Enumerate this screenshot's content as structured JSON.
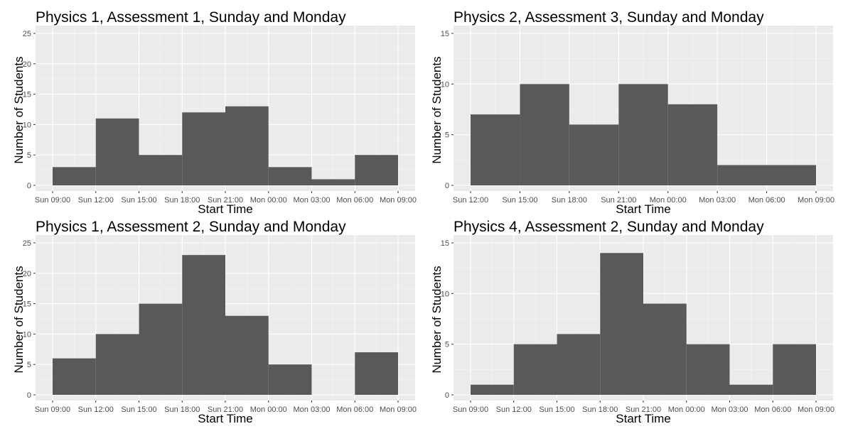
{
  "colors": {
    "panel_background": "#ebebeb",
    "major_grid": "#ffffff",
    "minor_grid": "#f5f5f5",
    "bar_fill": "#595959",
    "tick_text": "#4d4d4d",
    "text": "#000000"
  },
  "chart_data": [
    {
      "type": "bar",
      "title": "Physics 1, Assessment 1, Sunday and Monday",
      "xlabel": "Start Time",
      "ylabel": "Number of Students",
      "x_ticks": [
        "Sun 09:00",
        "Sun 12:00",
        "Sun 15:00",
        "Sun 18:00",
        "Sun 21:00",
        "Mon 00:00",
        "Mon 03:00",
        "Mon 06:00",
        "Mon 09:00"
      ],
      "bins": [
        {
          "start": "Sun 09:00",
          "end": "Sun 12:00",
          "value": 3
        },
        {
          "start": "Sun 12:00",
          "end": "Sun 15:00",
          "value": 11
        },
        {
          "start": "Sun 15:00",
          "end": "Sun 18:00",
          "value": 5
        },
        {
          "start": "Sun 18:00",
          "end": "Sun 21:00",
          "value": 12
        },
        {
          "start": "Sun 21:00",
          "end": "Mon 00:00",
          "value": 13
        },
        {
          "start": "Mon 00:00",
          "end": "Mon 03:00",
          "value": 3
        },
        {
          "start": "Mon 03:00",
          "end": "Mon 06:00",
          "value": 1
        },
        {
          "start": "Mon 06:00",
          "end": "Mon 09:00",
          "value": 5
        }
      ],
      "y_ticks": [
        0,
        5,
        10,
        15,
        20,
        25
      ],
      "ylim": [
        0,
        25
      ],
      "grid": true
    },
    {
      "type": "bar",
      "title": "Physics 2, Assessment 3, Sunday and Monday",
      "xlabel": "Start Time",
      "ylabel": "Number of Students",
      "x_ticks": [
        "Sun 12:00",
        "Sun 15:00",
        "Sun 18:00",
        "Sun 21:00",
        "Mon 00:00",
        "Mon 03:00",
        "Mon 06:00",
        "Mon 09:00"
      ],
      "bins": [
        {
          "start": "Sun 12:00",
          "end": "Sun 15:00",
          "value": 7
        },
        {
          "start": "Sun 15:00",
          "end": "Sun 18:00",
          "value": 10
        },
        {
          "start": "Sun 18:00",
          "end": "Sun 21:00",
          "value": 6
        },
        {
          "start": "Sun 21:00",
          "end": "Mon 00:00",
          "value": 10
        },
        {
          "start": "Mon 00:00",
          "end": "Mon 03:00",
          "value": 8
        },
        {
          "start": "Mon 03:00",
          "end": "Mon 09:00",
          "value": 2
        }
      ],
      "y_ticks": [
        0,
        5,
        10,
        15
      ],
      "ylim": [
        0,
        15
      ],
      "grid": true
    },
    {
      "type": "bar",
      "title": "Physics 1, Assessment 2, Sunday and Monday",
      "xlabel": "Start Time",
      "ylabel": "Number of Students",
      "x_ticks": [
        "Sun 09:00",
        "Sun 12:00",
        "Sun 15:00",
        "Sun 18:00",
        "Sun 21:00",
        "Mon 00:00",
        "Mon 03:00",
        "Mon 06:00",
        "Mon 09:00"
      ],
      "bins": [
        {
          "start": "Sun 09:00",
          "end": "Sun 12:00",
          "value": 6
        },
        {
          "start": "Sun 12:00",
          "end": "Sun 15:00",
          "value": 10
        },
        {
          "start": "Sun 15:00",
          "end": "Sun 18:00",
          "value": 15
        },
        {
          "start": "Sun 18:00",
          "end": "Sun 21:00",
          "value": 23
        },
        {
          "start": "Sun 21:00",
          "end": "Mon 00:00",
          "value": 13
        },
        {
          "start": "Mon 00:00",
          "end": "Mon 03:00",
          "value": 5
        },
        {
          "start": "Mon 03:00",
          "end": "Mon 06:00",
          "value": 0
        },
        {
          "start": "Mon 06:00",
          "end": "Mon 09:00",
          "value": 7
        }
      ],
      "y_ticks": [
        0,
        5,
        10,
        15,
        20,
        25
      ],
      "ylim": [
        0,
        25
      ],
      "grid": true
    },
    {
      "type": "bar",
      "title": "Physics 4, Assessment 2, Sunday and Monday",
      "xlabel": "Start Time",
      "ylabel": "Number of Students",
      "x_ticks": [
        "Sun 09:00",
        "Sun 12:00",
        "Sun 15:00",
        "Sun 18:00",
        "Sun 21:00",
        "Mon 00:00",
        "Mon 03:00",
        "Mon 06:00",
        "Mon 09:00"
      ],
      "bins": [
        {
          "start": "Sun 09:00",
          "end": "Sun 12:00",
          "value": 1
        },
        {
          "start": "Sun 12:00",
          "end": "Sun 15:00",
          "value": 5
        },
        {
          "start": "Sun 15:00",
          "end": "Sun 18:00",
          "value": 6
        },
        {
          "start": "Sun 18:00",
          "end": "Sun 21:00",
          "value": 14
        },
        {
          "start": "Sun 21:00",
          "end": "Mon 00:00",
          "value": 9
        },
        {
          "start": "Mon 00:00",
          "end": "Mon 03:00",
          "value": 5
        },
        {
          "start": "Mon 03:00",
          "end": "Mon 06:00",
          "value": 1
        },
        {
          "start": "Mon 06:00",
          "end": "Mon 09:00",
          "value": 5
        }
      ],
      "y_ticks": [
        0,
        5,
        10,
        15
      ],
      "ylim": [
        0,
        15
      ],
      "grid": true
    }
  ]
}
